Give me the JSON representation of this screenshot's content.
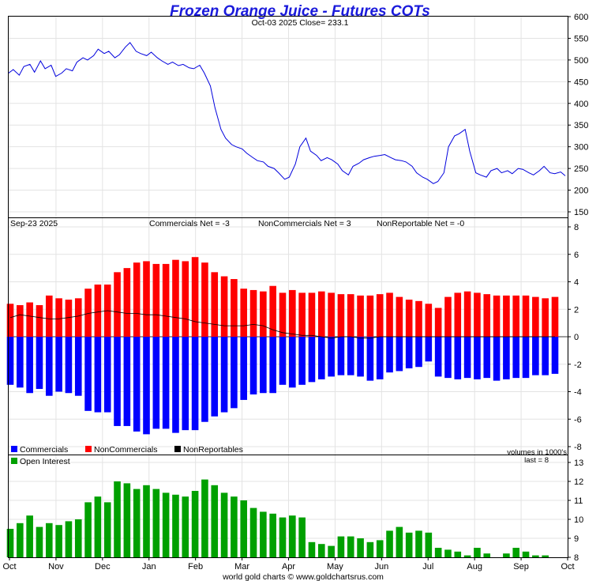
{
  "title": "Frozen Orange Juice - Futures COTs",
  "footer": "world gold charts © www.goldchartsrus.com",
  "colors": {
    "title": "#1a1adb",
    "price_line": "#0000dd",
    "commercials": "#0000ff",
    "noncommercials": "#ff0000",
    "nonreportables": "#000000",
    "open_interest": "#00a000"
  },
  "x_axis": {
    "months": [
      "Oct",
      "Nov",
      "Dec",
      "Jan",
      "Feb",
      "Mar",
      "Apr",
      "May",
      "Jun",
      "Jul",
      "Aug",
      "Sep",
      "Oct"
    ]
  },
  "chart_data": [
    {
      "type": "line",
      "panel": "price",
      "header": "Oct-03  2025   Close= 233.1",
      "date": "Oct-03  2025",
      "close": 233.1,
      "ylim": [
        150,
        600
      ],
      "yticks": [
        150,
        200,
        250,
        300,
        350,
        400,
        450,
        500,
        550,
        600
      ],
      "x_range": [
        "2024-10-01",
        "2025-10-03"
      ],
      "series": [
        {
          "x": [
            "2024-10-01",
            "2024-10-04",
            "2024-10-08",
            "2024-10-11",
            "2024-10-15",
            "2024-10-18",
            "2024-10-22",
            "2024-10-25",
            "2024-10-29",
            "2024-11-01",
            "2024-11-05",
            "2024-11-08",
            "2024-11-12",
            "2024-11-15",
            "2024-11-19",
            "2024-11-22",
            "2024-11-26",
            "2024-11-29",
            "2024-12-03",
            "2024-12-06",
            "2024-12-10",
            "2024-12-13",
            "2024-12-17",
            "2024-12-20",
            "2024-12-24",
            "2024-12-27",
            "2024-12-31",
            "2025-01-03",
            "2025-01-07",
            "2025-01-10",
            "2025-01-14",
            "2025-01-17",
            "2025-01-21",
            "2025-01-24",
            "2025-01-28",
            "2025-01-31",
            "2025-02-04",
            "2025-02-07",
            "2025-02-11",
            "2025-02-14",
            "2025-02-18",
            "2025-02-21",
            "2025-02-25",
            "2025-02-28",
            "2025-03-04",
            "2025-03-07",
            "2025-03-11",
            "2025-03-14",
            "2025-03-18",
            "2025-03-21",
            "2025-03-25",
            "2025-03-28",
            "2025-04-01",
            "2025-04-04",
            "2025-04-08",
            "2025-04-11",
            "2025-04-15",
            "2025-04-18",
            "2025-04-22",
            "2025-04-25",
            "2025-04-29",
            "2025-05-02",
            "2025-05-06",
            "2025-05-09",
            "2025-05-13",
            "2025-05-16",
            "2025-05-20",
            "2025-05-23",
            "2025-05-27",
            "2025-05-30",
            "2025-06-03",
            "2025-06-06",
            "2025-06-10",
            "2025-06-13",
            "2025-06-17",
            "2025-06-20",
            "2025-06-24",
            "2025-06-27",
            "2025-07-01",
            "2025-07-04",
            "2025-07-08",
            "2025-07-11",
            "2025-07-15",
            "2025-07-18",
            "2025-07-22",
            "2025-07-25",
            "2025-07-29",
            "2025-08-01",
            "2025-08-05",
            "2025-08-08",
            "2025-08-12",
            "2025-08-15",
            "2025-08-19",
            "2025-08-22",
            "2025-08-26",
            "2025-08-29",
            "2025-09-02",
            "2025-09-05",
            "2025-09-09",
            "2025-09-12",
            "2025-09-16",
            "2025-09-19",
            "2025-09-23",
            "2025-09-26",
            "2025-09-30",
            "2025-10-03"
          ],
          "y": [
            470,
            478,
            465,
            485,
            490,
            472,
            498,
            480,
            488,
            462,
            470,
            480,
            475,
            495,
            505,
            500,
            510,
            525,
            515,
            520,
            505,
            512,
            530,
            540,
            520,
            515,
            510,
            518,
            505,
            498,
            490,
            495,
            487,
            490,
            482,
            480,
            488,
            470,
            440,
            390,
            340,
            320,
            305,
            300,
            295,
            285,
            275,
            268,
            265,
            255,
            250,
            240,
            225,
            230,
            260,
            300,
            320,
            290,
            280,
            268,
            275,
            270,
            260,
            245,
            235,
            255,
            262,
            270,
            275,
            278,
            280,
            282,
            275,
            270,
            268,
            265,
            255,
            240,
            230,
            225,
            215,
            220,
            240,
            300,
            325,
            330,
            340,
            290,
            240,
            235,
            230,
            245,
            250,
            240,
            245,
            238,
            250,
            248,
            240,
            235,
            245,
            255,
            240,
            238,
            242,
            233.1
          ]
        }
      ]
    },
    {
      "type": "bar",
      "panel": "cot",
      "date": "Sep-23  2025",
      "labels": {
        "commercials": "Commercials Net = -3",
        "noncommercials": "NonCommercials Net = 3",
        "nonreportable": "NonReportable Net = -0"
      },
      "legend": [
        "Commercials",
        "NonCommercials",
        "NonReportables"
      ],
      "units_note": "volumes in 1000's",
      "ylim": [
        -8,
        8
      ],
      "yticks": [
        -8,
        -6,
        -4,
        -2,
        0,
        2,
        4,
        6,
        8
      ],
      "series": [
        {
          "name": "NonCommercials",
          "values": [
            2.4,
            2.3,
            2.5,
            2.3,
            3.0,
            2.8,
            2.7,
            2.8,
            3.5,
            3.8,
            3.8,
            4.7,
            5.0,
            5.4,
            5.5,
            5.3,
            5.3,
            5.6,
            5.5,
            5.8,
            5.4,
            4.7,
            4.4,
            4.2,
            3.5,
            3.4,
            3.3,
            3.7,
            3.2,
            3.4,
            3.2,
            3.2,
            3.3,
            3.2,
            3.1,
            3.1,
            3.0,
            3.0,
            3.1,
            3.2,
            2.9,
            2.7,
            2.6,
            2.4,
            2.1,
            2.9,
            3.2,
            3.3,
            3.2,
            3.1,
            3.0,
            3.0,
            3.0,
            3.0,
            2.9,
            2.8,
            2.9
          ]
        },
        {
          "name": "Commercials",
          "values": [
            -3.5,
            -3.7,
            -4.1,
            -3.8,
            -4.3,
            -4.0,
            -4.1,
            -4.3,
            -5.4,
            -5.5,
            -5.5,
            -6.5,
            -6.5,
            -6.9,
            -7.1,
            -6.7,
            -6.7,
            -7.0,
            -6.8,
            -6.8,
            -6.2,
            -5.8,
            -5.5,
            -5.2,
            -4.6,
            -4.2,
            -4.1,
            -4.1,
            -3.5,
            -3.7,
            -3.5,
            -3.3,
            -3.1,
            -2.9,
            -2.8,
            -2.8,
            -2.9,
            -3.2,
            -3.1,
            -2.6,
            -2.5,
            -2.3,
            -2.2,
            -1.8,
            -2.9,
            -3.0,
            -3.1,
            -3.0,
            -3.1,
            -3.0,
            -3.2,
            -3.1,
            -3.0,
            -3.0,
            -2.8,
            -2.8,
            -2.7
          ]
        },
        {
          "name": "NonReportables",
          "values": [
            1.4,
            1.6,
            1.5,
            1.4,
            1.3,
            1.3,
            1.4,
            1.5,
            1.7,
            1.8,
            1.9,
            1.8,
            1.7,
            1.7,
            1.6,
            1.6,
            1.5,
            1.4,
            1.3,
            1.1,
            1.0,
            0.9,
            0.8,
            0.8,
            0.8,
            0.9,
            0.8,
            0.5,
            0.3,
            0.2,
            0.1,
            0.1,
            0.0,
            -0.1,
            0.0,
            0.0,
            -0.1,
            -0.1,
            0.0,
            0.0,
            0.0,
            0.0,
            0.0,
            0.0,
            0.0,
            0.0,
            0.0,
            0.0,
            0.0,
            0.0,
            0.0,
            0.0,
            0.0,
            0.0,
            0.0,
            0.0,
            0.0
          ]
        }
      ]
    },
    {
      "type": "bar",
      "panel": "open_interest",
      "legend": [
        "Open Interest"
      ],
      "last_label": "last = 8",
      "ylim": [
        8,
        13
      ],
      "yticks": [
        8,
        9,
        10,
        11,
        12,
        13
      ],
      "series": [
        {
          "name": "Open Interest",
          "values": [
            9.5,
            9.8,
            10.2,
            9.6,
            9.8,
            9.7,
            9.9,
            10.0,
            10.9,
            11.2,
            10.9,
            12.0,
            11.9,
            11.6,
            11.8,
            11.6,
            11.4,
            11.3,
            11.2,
            11.5,
            12.1,
            11.8,
            11.4,
            11.2,
            11.0,
            10.6,
            10.4,
            10.3,
            10.1,
            10.2,
            10.1,
            8.8,
            8.7,
            8.6,
            9.1,
            9.1,
            9.0,
            8.8,
            8.9,
            9.4,
            9.6,
            9.3,
            9.4,
            9.3,
            8.5,
            8.4,
            8.3,
            8.1,
            8.5,
            8.2,
            8.0,
            8.2,
            8.5,
            8.3,
            8.1,
            8.1,
            8.0
          ]
        }
      ]
    }
  ]
}
